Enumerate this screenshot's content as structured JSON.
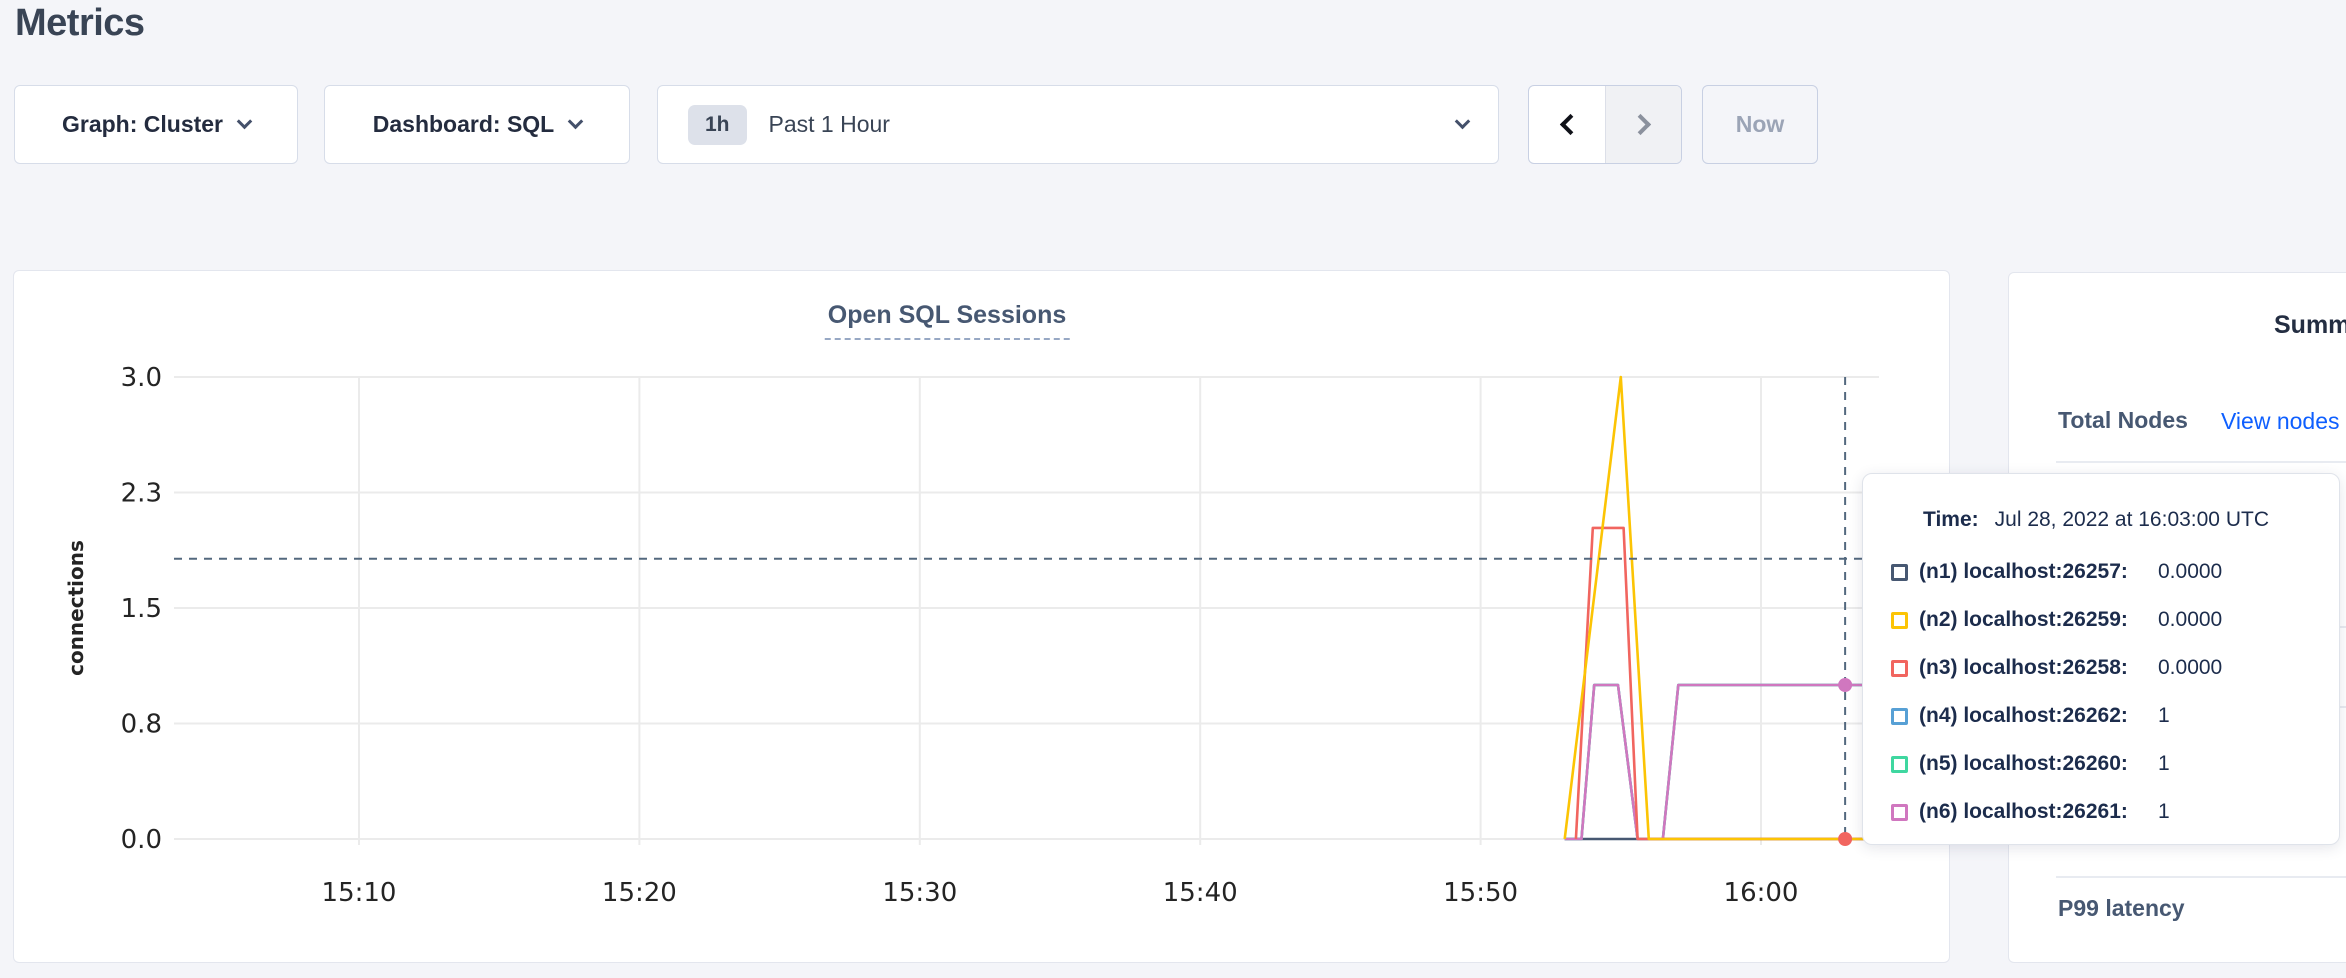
{
  "page": {
    "title": "Metrics"
  },
  "toolbar": {
    "graph_dropdown_label": "Graph: Cluster",
    "dashboard_dropdown_label": "Dashboard: SQL",
    "time_window_badge": "1h",
    "time_window_label": "Past 1 Hour",
    "now_button_label": "Now"
  },
  "chart_data": {
    "type": "line",
    "title": "Open SQL Sessions",
    "ylabel": "connections",
    "ylim": [
      0,
      3
    ],
    "x_range_time": [
      "15:03",
      "16:04"
    ],
    "grid": true,
    "y_ticks": [
      {
        "v": 0,
        "label": "0.0"
      },
      {
        "v": 0.75,
        "label": "0.8"
      },
      {
        "v": 1.5,
        "label": "1.5"
      },
      {
        "v": 2.25,
        "label": "2.3"
      },
      {
        "v": 3,
        "label": "3.0"
      }
    ],
    "x_ticks": [
      {
        "t": 910,
        "label": "15:10"
      },
      {
        "t": 920,
        "label": "15:20"
      },
      {
        "t": 930,
        "label": "15:30"
      },
      {
        "t": 940,
        "label": "15:40"
      },
      {
        "t": 950,
        "label": "15:50"
      },
      {
        "t": 960,
        "label": "16:00"
      }
    ],
    "time_unit": "minutes-after-00:00, values read off 10-min gridlines",
    "series": [
      {
        "name": "(n1) localhost:26257",
        "color": "#475872",
        "points": [
          [
            953.0,
            0
          ],
          [
            964.2,
            0
          ]
        ]
      },
      {
        "name": "(n2) localhost:26259",
        "color": "#fcc404",
        "points": [
          [
            953.0,
            0
          ],
          [
            955.0,
            3
          ],
          [
            956.0,
            0
          ],
          [
            964.2,
            0
          ]
        ]
      },
      {
        "name": "(n3) localhost:26258",
        "color": "#f1655f",
        "points": [
          [
            953.4,
            0
          ],
          [
            954.0,
            2.02
          ],
          [
            955.1,
            2.02
          ],
          [
            955.6,
            0
          ],
          [
            964.2,
            0
          ]
        ]
      },
      {
        "name": "(n4) localhost:26262",
        "color": "#57a0d5",
        "points": [
          [
            953.0,
            0
          ],
          [
            953.6,
            0
          ],
          [
            954.05,
            1
          ],
          [
            954.9,
            1
          ],
          [
            955.6,
            0
          ],
          [
            956.5,
            0
          ],
          [
            957.05,
            1
          ],
          [
            964.2,
            1
          ]
        ]
      },
      {
        "name": "(n5) localhost:26260",
        "color": "#3fd7a0",
        "points": [
          [
            953.0,
            0
          ],
          [
            953.6,
            0
          ],
          [
            954.05,
            1
          ],
          [
            954.9,
            1
          ],
          [
            955.6,
            0
          ],
          [
            956.5,
            0
          ],
          [
            957.05,
            1
          ],
          [
            964.2,
            1
          ]
        ]
      },
      {
        "name": "(n6) localhost:26261",
        "color": "#d077bf",
        "points": [
          [
            953.0,
            0
          ],
          [
            953.6,
            0
          ],
          [
            954.05,
            1
          ],
          [
            954.9,
            1
          ],
          [
            955.6,
            0
          ],
          [
            956.5,
            0
          ],
          [
            957.05,
            1
          ],
          [
            964.2,
            1
          ]
        ]
      }
    ],
    "draw_order": [
      0,
      3,
      4,
      5,
      2,
      1
    ],
    "crosshair": {
      "t": 963,
      "hover_value": 1.82,
      "dots": [
        {
          "series": 5,
          "v": 1
        },
        {
          "series": 2,
          "v": 0
        }
      ]
    }
  },
  "tooltip": {
    "time_label": "Time:",
    "time_value": "Jul 28, 2022 at 16:03:00 UTC",
    "rows": [
      {
        "label": "(n1) localhost:26257:",
        "value": "0.0000",
        "color": "#475872"
      },
      {
        "label": "(n2) localhost:26259:",
        "value": "0.0000",
        "color": "#fcc404"
      },
      {
        "label": "(n3) localhost:26258:",
        "value": "0.0000",
        "color": "#f1655f"
      },
      {
        "label": "(n4) localhost:26262:",
        "value": "1",
        "color": "#57a0d5"
      },
      {
        "label": "(n5) localhost:26260:",
        "value": "1",
        "color": "#3fd7a0"
      },
      {
        "label": "(n6) localhost:26261:",
        "value": "1",
        "color": "#d077bf"
      }
    ]
  },
  "sidebar": {
    "heading": "Summary",
    "total_nodes_label": "Total Nodes",
    "view_nodes_link": "View nodes",
    "p99_label": "P99 latency"
  },
  "colors": {
    "accent_link": "#0e5fff",
    "crosshair": "#53687e",
    "slate_heading": "#475872"
  }
}
